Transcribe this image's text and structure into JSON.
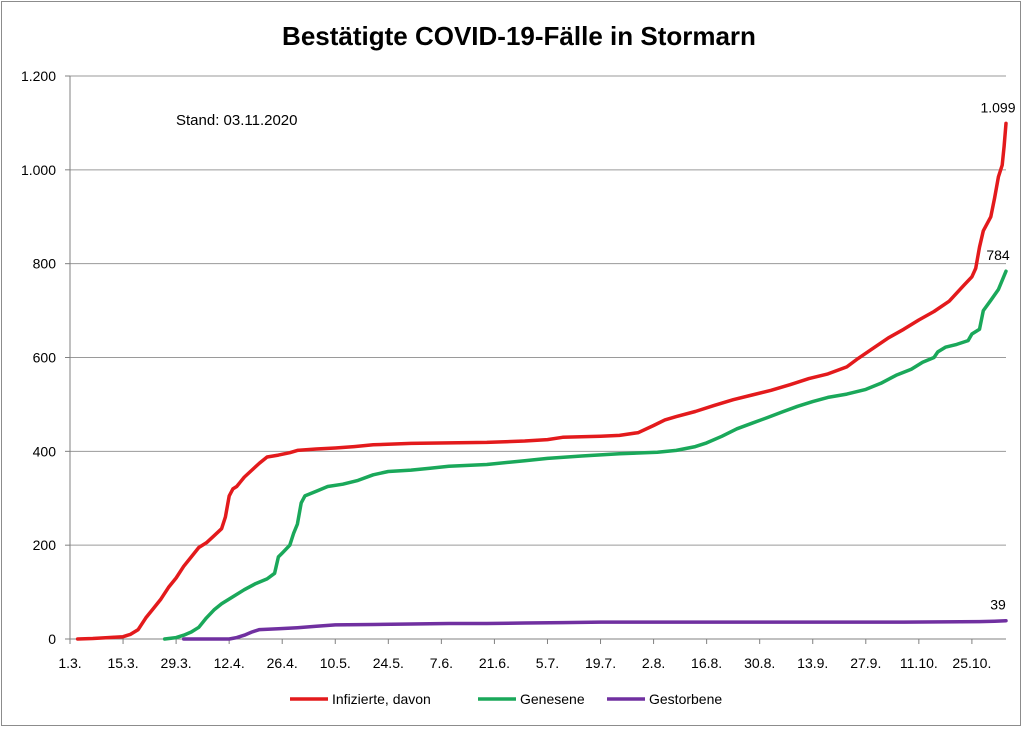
{
  "chart_data": {
    "type": "line",
    "title": "Bestätigte COVID-19-Fälle in Stormarn",
    "annotation": "Stand: 03.11.2020",
    "ylim": [
      0,
      1200
    ],
    "yticks": [
      0,
      200,
      400,
      600,
      800,
      1000,
      1200
    ],
    "ytick_labels": [
      "0",
      "200",
      "400",
      "600",
      "800",
      "1.000",
      "1.200"
    ],
    "grid": true,
    "legend_position": "bottom",
    "x_range_days": [
      0,
      247
    ],
    "xticks": [
      {
        "day": 0,
        "label": "1.3."
      },
      {
        "day": 14,
        "label": "15.3."
      },
      {
        "day": 28,
        "label": "29.3."
      },
      {
        "day": 42,
        "label": "12.4."
      },
      {
        "day": 56,
        "label": "26.4."
      },
      {
        "day": 70,
        "label": "10.5."
      },
      {
        "day": 84,
        "label": "24.5."
      },
      {
        "day": 98,
        "label": "7.6."
      },
      {
        "day": 112,
        "label": "21.6."
      },
      {
        "day": 126,
        "label": "5.7."
      },
      {
        "day": 140,
        "label": "19.7."
      },
      {
        "day": 154,
        "label": "2.8."
      },
      {
        "day": 168,
        "label": "16.8."
      },
      {
        "day": 182,
        "label": "30.8."
      },
      {
        "day": 196,
        "label": "13.9."
      },
      {
        "day": 210,
        "label": "27.9."
      },
      {
        "day": 224,
        "label": "11.10."
      },
      {
        "day": 238,
        "label": "25.10."
      }
    ],
    "series": [
      {
        "name": "Infizierte, davon",
        "color": "#e31a1c",
        "end_label": "1.099",
        "points": [
          [
            2,
            0
          ],
          [
            6,
            1
          ],
          [
            10,
            3
          ],
          [
            14,
            5
          ],
          [
            16,
            10
          ],
          [
            18,
            20
          ],
          [
            20,
            45
          ],
          [
            22,
            65
          ],
          [
            24,
            85
          ],
          [
            26,
            110
          ],
          [
            28,
            130
          ],
          [
            30,
            155
          ],
          [
            32,
            175
          ],
          [
            34,
            195
          ],
          [
            36,
            205
          ],
          [
            38,
            220
          ],
          [
            40,
            235
          ],
          [
            41,
            260
          ],
          [
            42,
            305
          ],
          [
            43,
            320
          ],
          [
            44,
            325
          ],
          [
            45,
            335
          ],
          [
            46,
            345
          ],
          [
            48,
            360
          ],
          [
            50,
            375
          ],
          [
            52,
            388
          ],
          [
            55,
            392
          ],
          [
            58,
            397
          ],
          [
            60,
            402
          ],
          [
            65,
            405
          ],
          [
            70,
            407
          ],
          [
            75,
            410
          ],
          [
            80,
            414
          ],
          [
            90,
            417
          ],
          [
            110,
            419
          ],
          [
            120,
            422
          ],
          [
            126,
            425
          ],
          [
            130,
            430
          ],
          [
            140,
            432
          ],
          [
            145,
            434
          ],
          [
            150,
            440
          ],
          [
            154,
            455
          ],
          [
            157,
            467
          ],
          [
            160,
            474
          ],
          [
            165,
            485
          ],
          [
            170,
            498
          ],
          [
            175,
            510
          ],
          [
            180,
            520
          ],
          [
            185,
            530
          ],
          [
            190,
            542
          ],
          [
            195,
            555
          ],
          [
            200,
            565
          ],
          [
            205,
            580
          ],
          [
            208,
            598
          ],
          [
            212,
            620
          ],
          [
            216,
            642
          ],
          [
            220,
            660
          ],
          [
            224,
            680
          ],
          [
            228,
            698
          ],
          [
            232,
            720
          ],
          [
            236,
            755
          ],
          [
            238,
            772
          ],
          [
            239,
            790
          ],
          [
            240,
            835
          ],
          [
            241,
            870
          ],
          [
            243,
            900
          ],
          [
            244,
            940
          ],
          [
            245,
            985
          ],
          [
            246,
            1010
          ],
          [
            246.5,
            1050
          ],
          [
            247,
            1099
          ]
        ]
      },
      {
        "name": "Genesene",
        "color": "#1aa85a",
        "end_label": "784",
        "points": [
          [
            25,
            0
          ],
          [
            28,
            3
          ],
          [
            30,
            8
          ],
          [
            32,
            15
          ],
          [
            34,
            25
          ],
          [
            36,
            45
          ],
          [
            38,
            62
          ],
          [
            40,
            75
          ],
          [
            43,
            90
          ],
          [
            46,
            105
          ],
          [
            49,
            118
          ],
          [
            52,
            128
          ],
          [
            54,
            140
          ],
          [
            55,
            175
          ],
          [
            56,
            183
          ],
          [
            58,
            200
          ],
          [
            59,
            225
          ],
          [
            60,
            245
          ],
          [
            61,
            290
          ],
          [
            62,
            305
          ],
          [
            65,
            315
          ],
          [
            68,
            325
          ],
          [
            72,
            330
          ],
          [
            76,
            338
          ],
          [
            80,
            350
          ],
          [
            84,
            357
          ],
          [
            90,
            360
          ],
          [
            95,
            364
          ],
          [
            100,
            368
          ],
          [
            110,
            372
          ],
          [
            120,
            380
          ],
          [
            126,
            385
          ],
          [
            135,
            390
          ],
          [
            145,
            395
          ],
          [
            155,
            398
          ],
          [
            160,
            402
          ],
          [
            165,
            410
          ],
          [
            168,
            418
          ],
          [
            172,
            432
          ],
          [
            176,
            448
          ],
          [
            180,
            460
          ],
          [
            184,
            472
          ],
          [
            188,
            484
          ],
          [
            192,
            496
          ],
          [
            196,
            506
          ],
          [
            200,
            515
          ],
          [
            205,
            522
          ],
          [
            210,
            532
          ],
          [
            214,
            545
          ],
          [
            218,
            562
          ],
          [
            222,
            575
          ],
          [
            225,
            590
          ],
          [
            228,
            600
          ],
          [
            229,
            612
          ],
          [
            231,
            622
          ],
          [
            234,
            628
          ],
          [
            237,
            636
          ],
          [
            238,
            650
          ],
          [
            240,
            660
          ],
          [
            241,
            700
          ],
          [
            243,
            722
          ],
          [
            245,
            745
          ],
          [
            247,
            784
          ]
        ]
      },
      {
        "name": "Gestorbene",
        "color": "#7030a0",
        "end_label": "39",
        "points": [
          [
            30,
            0
          ],
          [
            42,
            0
          ],
          [
            44,
            3
          ],
          [
            46,
            8
          ],
          [
            48,
            15
          ],
          [
            50,
            20
          ],
          [
            55,
            22
          ],
          [
            60,
            24
          ],
          [
            65,
            27
          ],
          [
            70,
            30
          ],
          [
            80,
            31
          ],
          [
            90,
            32
          ],
          [
            100,
            33
          ],
          [
            110,
            33
          ],
          [
            120,
            34
          ],
          [
            130,
            35
          ],
          [
            140,
            36
          ],
          [
            160,
            36
          ],
          [
            180,
            36
          ],
          [
            200,
            36
          ],
          [
            220,
            36
          ],
          [
            240,
            37
          ],
          [
            244,
            38
          ],
          [
            247,
            39
          ]
        ]
      }
    ]
  }
}
